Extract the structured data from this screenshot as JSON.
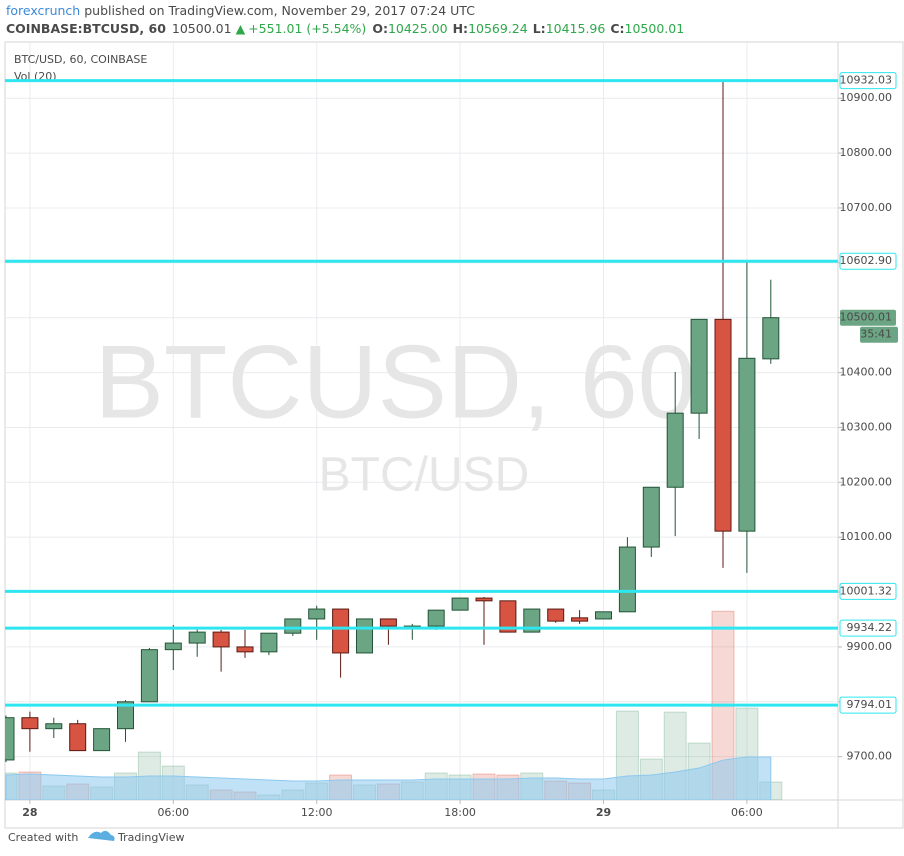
{
  "header": {
    "publisher": "forexcrunch",
    "published": "published on TradingView.com, November 29, 2017 07:24 UTC",
    "symbol": "COINBASE:BTCUSD, 60",
    "price": "10500.01",
    "change": "+551.01 (+5.54%)",
    "o_label": "O:",
    "o": "10425.00",
    "h_label": "H:",
    "h": "10569.24",
    "l_label": "L:",
    "l": "10415.96",
    "c_label": "C:",
    "c": "10500.01"
  },
  "chart_data": {
    "type": "candlestick",
    "legend": "BTC/USD, 60, COINBASE",
    "volume_label": "Vol (20)",
    "watermark": "BTCUSD, 60",
    "watermark_sub": "BTC/USD",
    "categories": [
      null,
      "28",
      null,
      null,
      null,
      null,
      null,
      "06:00",
      null,
      null,
      null,
      null,
      null,
      "12:00",
      null,
      null,
      null,
      null,
      null,
      "18:00",
      null,
      null,
      null,
      null,
      null,
      "29",
      null,
      null,
      null,
      null,
      null,
      "06:00",
      null
    ],
    "open": [
      9694,
      9771,
      9751,
      9760,
      9711,
      9751,
      9800,
      9895,
      9907,
      9927,
      9900,
      9891,
      9925,
      9951,
      9969,
      9889,
      9951,
      9935,
      9938,
      9967,
      9989,
      9984,
      9927,
      9969,
      9953,
      9951,
      9964,
      10082,
      10191,
      10326,
      10497,
      10111,
      10425
    ],
    "high": [
      9775,
      9782,
      9771,
      9767,
      9751,
      9803,
      9898,
      9940,
      9935,
      9931,
      9931,
      9925,
      9951,
      9975,
      9969,
      9951,
      9951,
      9942,
      9967,
      9989,
      9991,
      9984,
      9969,
      9969,
      9967,
      9964,
      10100,
      10191,
      10401,
      10497,
      10933,
      10603,
      10569.24
    ],
    "low": [
      9690,
      9709,
      9734,
      9711,
      9711,
      9727,
      9800,
      9858,
      9882,
      9855,
      9880,
      9885,
      9920,
      9913,
      9844,
      9889,
      9904,
      9913,
      9931,
      9967,
      9904,
      9927,
      9927,
      9944,
      9942,
      9951,
      9964,
      10064,
      10102,
      10279,
      10044,
      10035,
      10415.96
    ],
    "close": [
      9771,
      9751,
      9760,
      9711,
      9751,
      9800,
      9895,
      9907,
      9927,
      9900,
      9891,
      9925,
      9951,
      9969,
      9889,
      9951,
      9938,
      9938,
      9967,
      9989,
      9984,
      9927,
      9969,
      9947,
      9947,
      9964,
      10082,
      10191,
      10326,
      10497,
      10111,
      10426,
      10500.01
    ],
    "volume": [
      27,
      28,
      14,
      16,
      13,
      27,
      48,
      34,
      15,
      10,
      8,
      5,
      10,
      17,
      25,
      15,
      16,
      18,
      27,
      25,
      26,
      25,
      27,
      19,
      17,
      10,
      89,
      41,
      88,
      57,
      189,
      92,
      18
    ],
    "volume_ma": [
      25,
      26,
      25,
      24,
      23,
      23,
      24,
      24,
      23,
      22,
      21,
      20,
      19,
      19,
      20,
      20,
      20,
      20,
      21,
      21,
      21,
      21,
      22,
      22,
      21,
      21,
      24,
      25,
      28,
      32,
      40,
      43,
      43
    ],
    "up_color": "#6ba583",
    "down_color": "#d75442",
    "up_border": "#225437",
    "down_border": "#5b1a13",
    "ma_color": "#8cc8ee",
    "ylim": [
      9621,
      10997
    ],
    "yticks": [
      {
        "value": 9700,
        "label": "9700.00"
      },
      {
        "value": 9800,
        "label": "9800.00"
      },
      {
        "value": 9900,
        "label": "9900.00"
      },
      {
        "value": 10000,
        "label": "10000.00"
      },
      {
        "value": 10100,
        "label": "10100.00"
      },
      {
        "value": 10200,
        "label": "10200.00"
      },
      {
        "value": 10300,
        "label": "10300.00"
      },
      {
        "value": 10400,
        "label": "10400.00"
      },
      {
        "value": 10500,
        "label": "10500.00"
      },
      {
        "value": 10600,
        "label": "10600.00"
      },
      {
        "value": 10700,
        "label": "10700.00"
      },
      {
        "value": 10800,
        "label": "10800.00"
      },
      {
        "value": 10900,
        "label": "10900.00"
      }
    ],
    "hlines": [
      10932.03,
      {
        "value": 10602.9,
        "label": "10602.90"
      },
      10001.32,
      9934.22,
      9794.01
    ],
    "hline_color": "#2ee6f0",
    "last_price": 10500.01,
    "countdown": "35:41",
    "grid": true
  },
  "footer": {
    "created": "Created with",
    "brand": "TradingView"
  }
}
